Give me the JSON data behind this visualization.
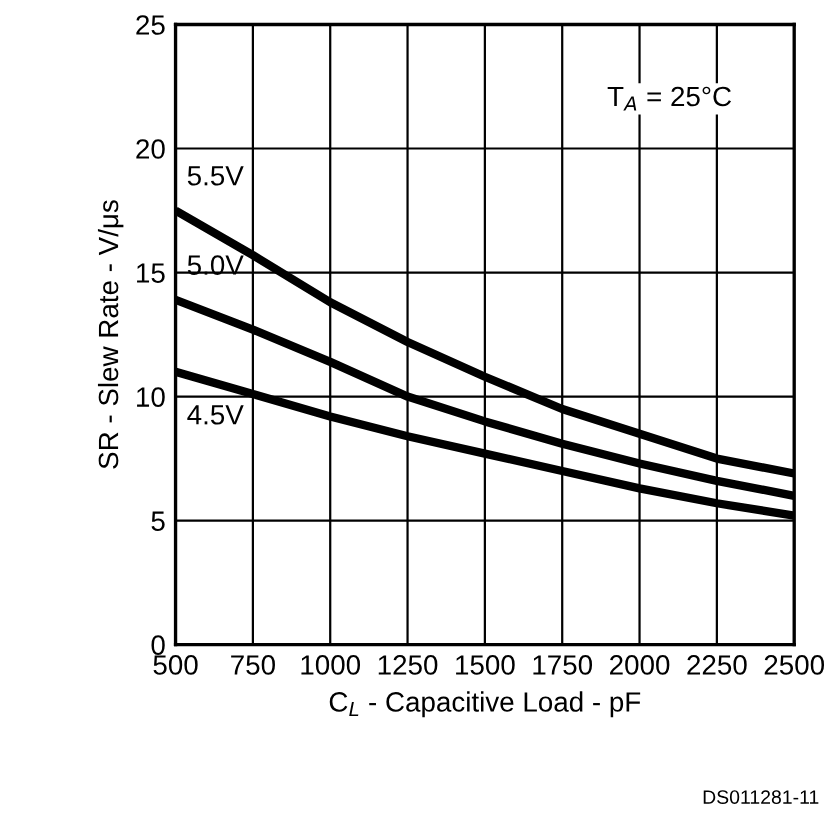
{
  "chart_data": {
    "type": "line",
    "xlabel": "C$_{L}$ - Capacitive Load - pF",
    "ylabel": "SR - Slew Rate - V/μs",
    "x": [
      500,
      750,
      1000,
      1250,
      1500,
      1750,
      2000,
      2250,
      2500
    ],
    "series": [
      {
        "name": "5.5V",
        "color": "#000000",
        "values": [
          17.5,
          15.7,
          13.8,
          12.2,
          10.8,
          9.5,
          8.5,
          7.5,
          6.9
        ]
      },
      {
        "name": "5.0V",
        "color": "#000000",
        "values": [
          13.9,
          12.7,
          11.4,
          10.0,
          9.0,
          8.1,
          7.3,
          6.6,
          6.0
        ]
      },
      {
        "name": "4.5V",
        "color": "#000000",
        "values": [
          11.0,
          10.1,
          9.2,
          8.4,
          7.7,
          7.0,
          6.3,
          5.7,
          5.2
        ]
      }
    ],
    "xlim": [
      500,
      2500
    ],
    "ylim": [
      0,
      25
    ],
    "xticks": [
      500,
      750,
      1000,
      1250,
      1500,
      1750,
      2000,
      2250,
      2500
    ],
    "yticks": [
      0,
      5,
      10,
      15,
      20,
      25
    ],
    "grid": true,
    "legend": false,
    "marker": "none",
    "line_style": "solid",
    "annotations": [
      "T$_{A}$ = 25°C",
      "DS011281-11"
    ]
  }
}
